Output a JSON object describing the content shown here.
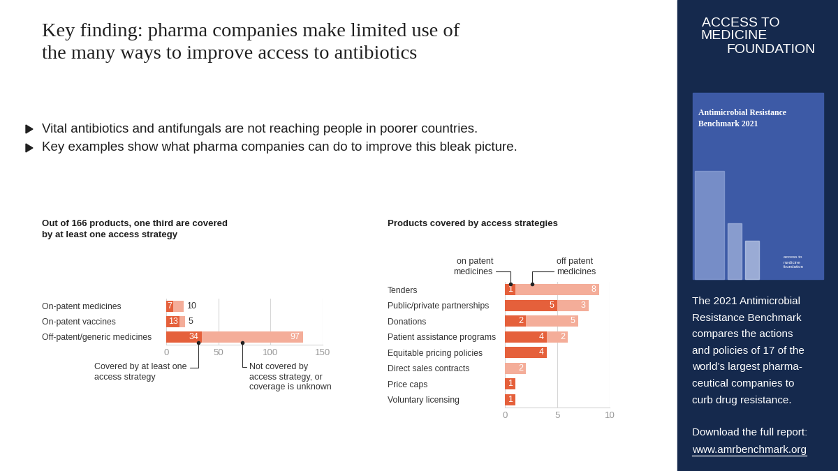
{
  "header": {
    "title_lines": [
      "Key finding: pharma companies make limited use of",
      "the many ways to improve access to antibiotics"
    ],
    "bullets": [
      "Vital antibiotics and antifungals are not reaching people in poorer countries.",
      "Key examples show what pharma companies can do to improve this bleak picture."
    ]
  },
  "chart_data": [
    {
      "type": "bar",
      "orientation": "horizontal",
      "stacked": true,
      "title": "Out of 166 products, one third are covered by at least one access strategy",
      "categories": [
        "On-patent medicines",
        "On-patent vaccines",
        "Off-patent/generic medicines"
      ],
      "series": [
        {
          "name": "Covered by at least one access strategy",
          "color": "#e5603b",
          "values": [
            7,
            13,
            34
          ]
        },
        {
          "name": "Not covered by access strategy, or coverage is unknown",
          "color": "#f4ad99",
          "values": [
            10,
            5,
            97
          ]
        }
      ],
      "xlim": [
        0,
        150
      ],
      "xticks": [
        0,
        50,
        100,
        150
      ],
      "grid": true,
      "data_labels": true
    },
    {
      "type": "bar",
      "orientation": "horizontal",
      "stacked": true,
      "title": "Products covered by access strategies",
      "categories": [
        "Tenders",
        "Public/private partnerships",
        "Donations",
        "Patient assistance programs",
        "Equitable pricing policies",
        "Direct sales contracts",
        "Price caps",
        "Voluntary licensing"
      ],
      "series": [
        {
          "name": "on patent medicines",
          "color": "#e5603b",
          "values": [
            1,
            5,
            2,
            4,
            4,
            null,
            1,
            1
          ]
        },
        {
          "name": "off patent medicines",
          "color": "#f4ad99",
          "values": [
            8,
            3,
            5,
            2,
            null,
            2,
            null,
            null
          ]
        }
      ],
      "xlim": [
        0,
        10
      ],
      "xticks": [
        0,
        5,
        10
      ],
      "grid": true,
      "data_labels": true
    }
  ],
  "sidebar": {
    "logo_lines": [
      "ACCESS TO",
      "MEDICINE",
      "FOUNDATION"
    ],
    "cover": {
      "title_lines": [
        "Antimicrobial Resistance",
        "Benchmark 2021"
      ],
      "logo_lines": [
        "access to",
        "medicine",
        "foundation"
      ]
    },
    "description_lines": [
      "The 2021 Antimicrobial",
      "Resistance Benchmark",
      "compares the actions",
      "and policies of 17 of the",
      "world’s largest pharma-",
      "ceutical companies to",
      "curb drug resistance."
    ],
    "download_text": "Download the full report:",
    "url": "www.amrbenchmark.org"
  }
}
